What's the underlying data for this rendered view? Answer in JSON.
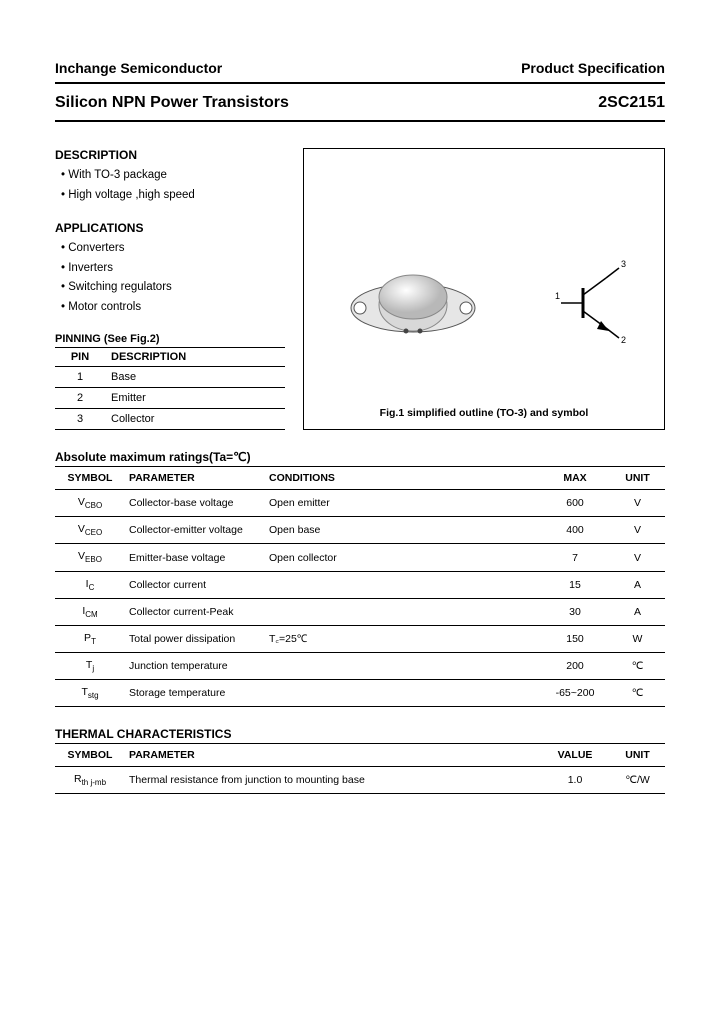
{
  "header": {
    "company": "Inchange Semiconductor",
    "doc_type": "Product Specification"
  },
  "title": {
    "product_line": "Silicon NPN Power Transistors",
    "part_number": "2SC2151"
  },
  "description": {
    "heading": "DESCRIPTION",
    "items": [
      "With TO-3 package",
      "High voltage ,high speed"
    ]
  },
  "applications": {
    "heading": "APPLICATIONS",
    "items": [
      "Converters",
      "Inverters",
      "Switching regulators",
      "Motor controls"
    ]
  },
  "pinning": {
    "heading": "PINNING (See Fig.2)",
    "col_pin": "PIN",
    "col_desc": "DESCRIPTION",
    "rows": [
      {
        "pin": "1",
        "desc": "Base"
      },
      {
        "pin": "2",
        "desc": "Emitter"
      },
      {
        "pin": "3",
        "desc": "Collector"
      }
    ]
  },
  "figure": {
    "caption": "Fig.1 simplified outline (TO-3) and symbol",
    "pin_labels": {
      "p1": "1",
      "p2": "2",
      "p3": "3"
    },
    "package_color": "#d8d8d8",
    "package_shadow": "#b0b0b0",
    "line_color": "#000000"
  },
  "ratings": {
    "heading": "Absolute maximum ratings(Ta=℃)",
    "cols": [
      "SYMBOL",
      "PARAMETER",
      "CONDITIONS",
      "MAX",
      "UNIT"
    ],
    "rows": [
      {
        "sym": "V",
        "sub": "CBO",
        "param": "Collector-base voltage",
        "cond": "Open emitter",
        "max": "600",
        "unit": "V"
      },
      {
        "sym": "V",
        "sub": "CEO",
        "param": "Collector-emitter voltage",
        "cond": "Open base",
        "max": "400",
        "unit": "V"
      },
      {
        "sym": "V",
        "sub": "EBO",
        "param": "Emitter-base voltage",
        "cond": "Open collector",
        "max": "7",
        "unit": "V"
      },
      {
        "sym": "I",
        "sub": "C",
        "param": "Collector current",
        "cond": "",
        "max": "15",
        "unit": "A"
      },
      {
        "sym": "I",
        "sub": "CM",
        "param": "Collector current-Peak",
        "cond": "",
        "max": "30",
        "unit": "A"
      },
      {
        "sym": "P",
        "sub": "T",
        "param": "Total power dissipation",
        "cond": "T꜀=25℃",
        "max": "150",
        "unit": "W"
      },
      {
        "sym": "T",
        "sub": "j",
        "param": "Junction temperature",
        "cond": "",
        "max": "200",
        "unit": "℃"
      },
      {
        "sym": "T",
        "sub": "stg",
        "param": "Storage temperature",
        "cond": "",
        "max": "-65~200",
        "unit": "℃"
      }
    ]
  },
  "thermal": {
    "heading": "THERMAL CHARACTERISTICS",
    "cols": [
      "SYMBOL",
      "PARAMETER",
      "VALUE",
      "UNIT"
    ],
    "rows": [
      {
        "sym": "R",
        "sub": "th j-mb",
        "param": "Thermal resistance from junction to mounting base",
        "value": "1.0",
        "unit": "℃/W"
      }
    ]
  }
}
